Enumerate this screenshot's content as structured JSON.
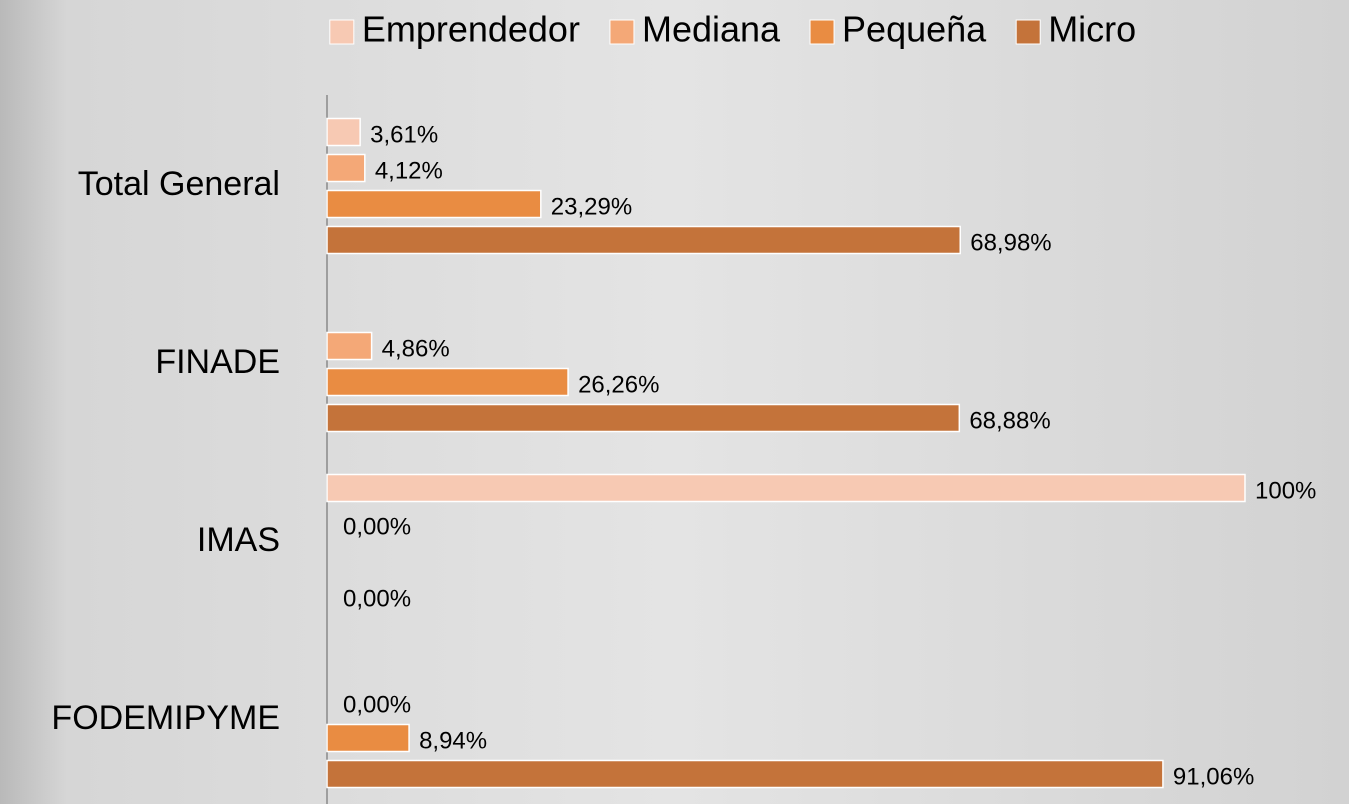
{
  "chart_data": {
    "type": "bar",
    "orientation": "horizontal",
    "categories": [
      "Total General",
      "FINADE",
      "IMAS",
      "FODEMIPYME"
    ],
    "series": [
      {
        "name": "Emprendedor",
        "color": "#f7c9b3",
        "values": [
          3.61,
          null,
          100,
          null
        ],
        "value_labels": [
          "3,61%",
          null,
          "100%",
          null
        ]
      },
      {
        "name": "Mediana",
        "color": "#f4a877",
        "values": [
          4.12,
          4.86,
          0,
          0
        ],
        "value_labels": [
          "4,12%",
          "4,86%",
          "0,00%",
          "0,00%"
        ]
      },
      {
        "name": "Pequeña",
        "color": "#e98c42",
        "values": [
          23.29,
          26.26,
          null,
          8.94
        ],
        "value_labels": [
          "23,29%",
          "26,26%",
          null,
          "8,94%"
        ]
      },
      {
        "name": "Micro",
        "color": "#c4733a",
        "values": [
          68.98,
          68.88,
          0,
          91.06
        ],
        "value_labels": [
          "68,98%",
          "68,88%",
          "0,00%",
          "91,06%"
        ]
      }
    ],
    "xlim": [
      0,
      100
    ],
    "legend": "top"
  }
}
